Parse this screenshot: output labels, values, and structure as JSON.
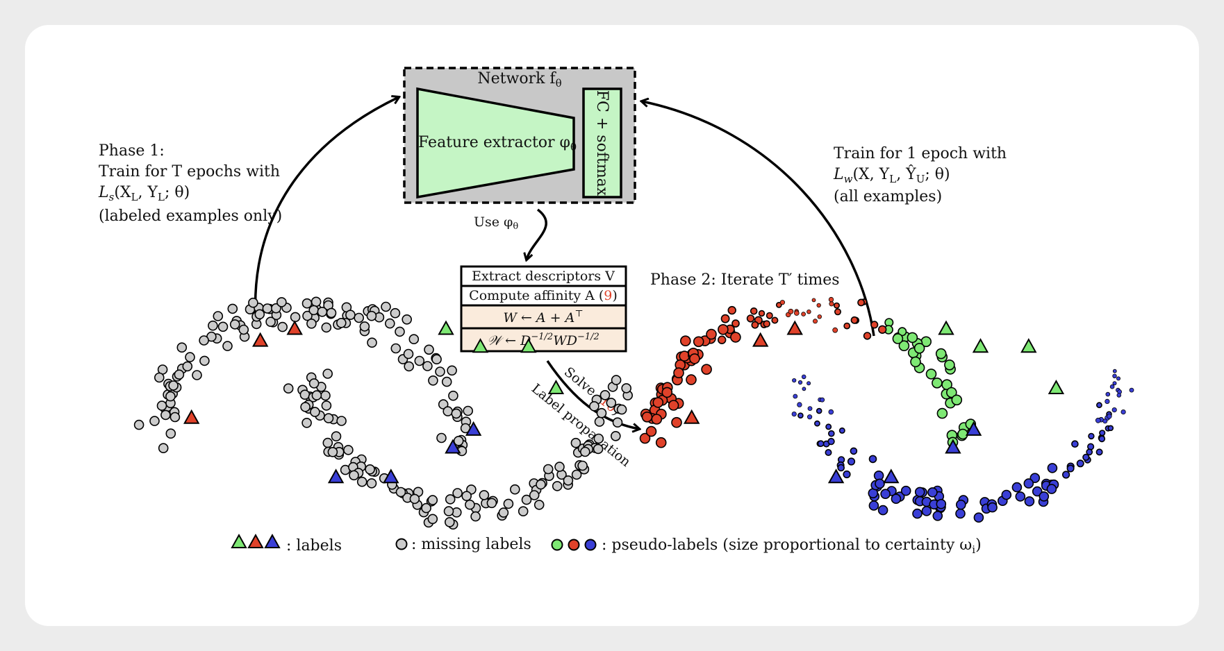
{
  "network": {
    "title": "Network f",
    "title_sub": "θ",
    "feature_extractor": "Feature extractor φ",
    "feature_sub": "θ",
    "head": "FC + softmax"
  },
  "phase1": {
    "line1": "Phase 1:",
    "line2": "Train for T epochs with",
    "loss": "L",
    "loss_sub": "s",
    "loss_args_a": "(X",
    "loss_args_sub_a": "L",
    "loss_args_b": ", Y",
    "loss_args_sub_b": "L",
    "loss_args_c": "; θ)",
    "line4": "(labeled examples only)"
  },
  "phase_right": {
    "line1": "Train for 1 epoch with",
    "loss": "L",
    "loss_sub": "w",
    "loss_args_a": "(X, Y",
    "loss_args_sub_a": "L",
    "loss_args_b": ", Ŷ",
    "loss_args_sub_b": "U",
    "loss_args_c": "; θ)",
    "line3": "(all examples)"
  },
  "use_phi": {
    "text": "Use φ",
    "sub": "θ"
  },
  "steps": {
    "step1": "Extract descriptors V",
    "step2_pre": "Compute affinity A (",
    "step2_ref": "9",
    "step2_post": ")",
    "step3": "W  ←  A + A",
    "step3_sup": "⊤",
    "step4_a": "𝒲 ← D",
    "step4_sup1": "−1/2",
    "step4_b": "WD",
    "step4_sup2": "−1/2"
  },
  "phase2": {
    "text": "Phase 2: Iterate T′ times"
  },
  "solve": {
    "pre": "Solve (",
    "ref": "10",
    "post": ")",
    "label_prop": "Label propagation"
  },
  "legend": {
    "labels": ": labels",
    "missing": ": missing labels",
    "pseudo": ": pseudo-labels (size proportional to certainty ω",
    "pseudo_sub": "i",
    "pseudo_end": ")"
  },
  "colors": {
    "red": "#e0422a",
    "green": "#7ee874",
    "blue": "#3a3fd6",
    "gray": "#cccccc",
    "network_bg": "#c8c8c8",
    "extractor_fill": "#c5f5c5",
    "step_fill": "#faebdc"
  }
}
